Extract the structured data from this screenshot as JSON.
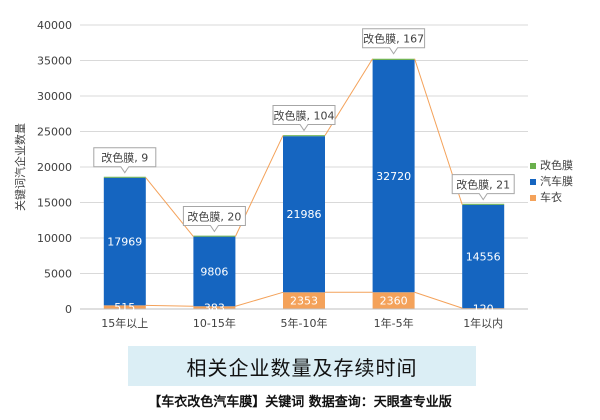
{
  "chart_data": {
    "type": "bar",
    "stacked": true,
    "categories": [
      "15年以上",
      "10-15年",
      "5年-10年",
      "1年-5年",
      "1年以内"
    ],
    "series": [
      {
        "name": "车衣",
        "color": "#f4a25a",
        "values": [
          515,
          383,
          2353,
          2360,
          120
        ]
      },
      {
        "name": "汽车膜",
        "color": "#1565c0",
        "values": [
          17969,
          9806,
          21986,
          32720,
          14556
        ]
      },
      {
        "name": "改色膜",
        "color": "#6ab04c",
        "values": [
          9,
          20,
          104,
          167,
          21
        ]
      }
    ],
    "callouts": [
      "改色膜, 9",
      "改色膜, 20",
      "改色膜, 104",
      "改色膜, 167",
      "改色膜, 21"
    ],
    "ylabel": "关键词汽企业数量",
    "ylim": [
      0,
      40000
    ],
    "yticks": [
      0,
      5000,
      10000,
      15000,
      20000,
      25000,
      30000,
      35000,
      40000
    ],
    "legend_position": "right",
    "legend_order": [
      "改色膜",
      "汽车膜",
      "车衣"
    ],
    "grid": true,
    "trend_line_color": "#f4a25a"
  },
  "title": "相关企业数量及存续时间",
  "footer": "【车衣改色汽车膜】关键词  数据查询：天眼查专业版"
}
